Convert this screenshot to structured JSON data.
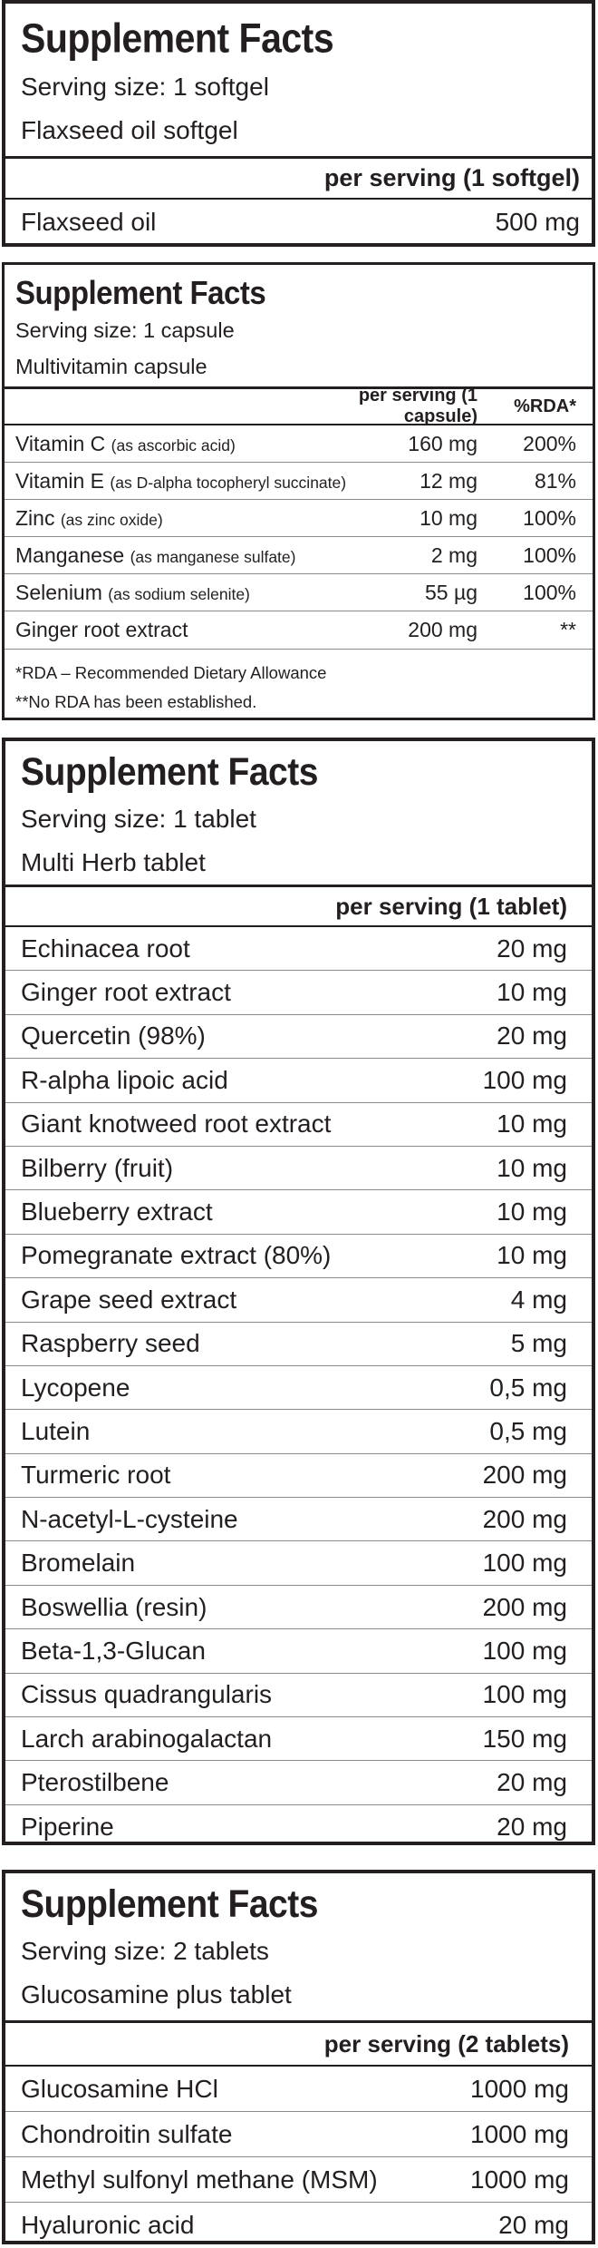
{
  "panels": [
    {
      "title": "Supplement Facts",
      "serving_size": "Serving size: 1 softgel",
      "product": "Flaxseed oil softgel",
      "per_serving_header": "per serving (1 softgel)",
      "rows": [
        {
          "name": "Flaxseed oil",
          "amount": "500 mg"
        }
      ]
    },
    {
      "title": "Supplement Facts",
      "serving_size": "Serving size: 1 capsule",
      "product": "Multivitamin capsule",
      "per_serving_header": "per serving (1 capsule)",
      "rda_header": "%RDA*",
      "rows": [
        {
          "name": "Vitamin C",
          "detail": "(as ascorbic acid)",
          "amount": "160 mg",
          "rda": "200%"
        },
        {
          "name": "Vitamin E",
          "detail": "(as D-alpha tocopheryl succinate)",
          "amount": "12 mg",
          "rda": "81%"
        },
        {
          "name": "Zinc",
          "detail": "(as zinc oxide)",
          "amount": "10 mg",
          "rda": "100%"
        },
        {
          "name": "Manganese",
          "detail": "(as manganese sulfate)",
          "amount": "2 mg",
          "rda": "100%"
        },
        {
          "name": "Selenium",
          "detail": "(as sodium selenite)",
          "amount": "55 µg",
          "rda": "100%"
        },
        {
          "name": "Ginger root extract",
          "detail": "",
          "amount": "200 mg",
          "rda": "**"
        }
      ],
      "footnotes": [
        "*RDA – Recommended Dietary Allowance",
        "**No RDA has been established."
      ]
    },
    {
      "title": "Supplement Facts",
      "serving_size": "Serving size: 1 tablet",
      "product": "Multi Herb tablet",
      "per_serving_header": "per serving (1 tablet)",
      "rows": [
        {
          "name": "Echinacea root",
          "amount": "20 mg"
        },
        {
          "name": "Ginger root extract",
          "amount": "10 mg"
        },
        {
          "name": "Quercetin (98%)",
          "amount": "20 mg"
        },
        {
          "name": "R-alpha lipoic acid",
          "amount": "100 mg"
        },
        {
          "name": "Giant knotweed root extract",
          "amount": "10 mg"
        },
        {
          "name": "Bilberry (fruit)",
          "amount": "10 mg"
        },
        {
          "name": "Blueberry extract",
          "amount": "10 mg"
        },
        {
          "name": "Pomegranate extract (80%)",
          "amount": "10 mg"
        },
        {
          "name": "Grape seed extract",
          "amount": "4 mg"
        },
        {
          "name": "Raspberry seed",
          "amount": "5 mg"
        },
        {
          "name": "Lycopene",
          "amount": "0,5 mg"
        },
        {
          "name": "Lutein",
          "amount": "0,5 mg"
        },
        {
          "name": "Turmeric root",
          "amount": "200 mg"
        },
        {
          "name": "N-acetyl-L-cysteine",
          "amount": "200 mg"
        },
        {
          "name": "Bromelain",
          "amount": "100 mg"
        },
        {
          "name": "Boswellia (resin)",
          "amount": "200 mg"
        },
        {
          "name": "Beta-1,3-Glucan",
          "amount": "100 mg"
        },
        {
          "name": "Cissus quadrangularis",
          "amount": "100 mg"
        },
        {
          "name": "Larch arabinogalactan",
          "amount": "150 mg"
        },
        {
          "name": "Pterostilbene",
          "amount": "20 mg"
        },
        {
          "name": "Piperine",
          "amount": "20 mg"
        }
      ]
    },
    {
      "title": "Supplement Facts",
      "serving_size": "Serving size: 2 tablets",
      "product": "Glucosamine plus tablet",
      "per_serving_header": "per serving (2 tablets)",
      "rows": [
        {
          "name": "Glucosamine HCl",
          "amount": "1000 mg"
        },
        {
          "name": "Chondroitin sulfate",
          "amount": "1000 mg"
        },
        {
          "name": "Methyl sulfonyl methane (MSM)",
          "amount": "1000 mg"
        },
        {
          "name": "Hyaluronic acid",
          "amount": "20 mg"
        }
      ]
    }
  ]
}
